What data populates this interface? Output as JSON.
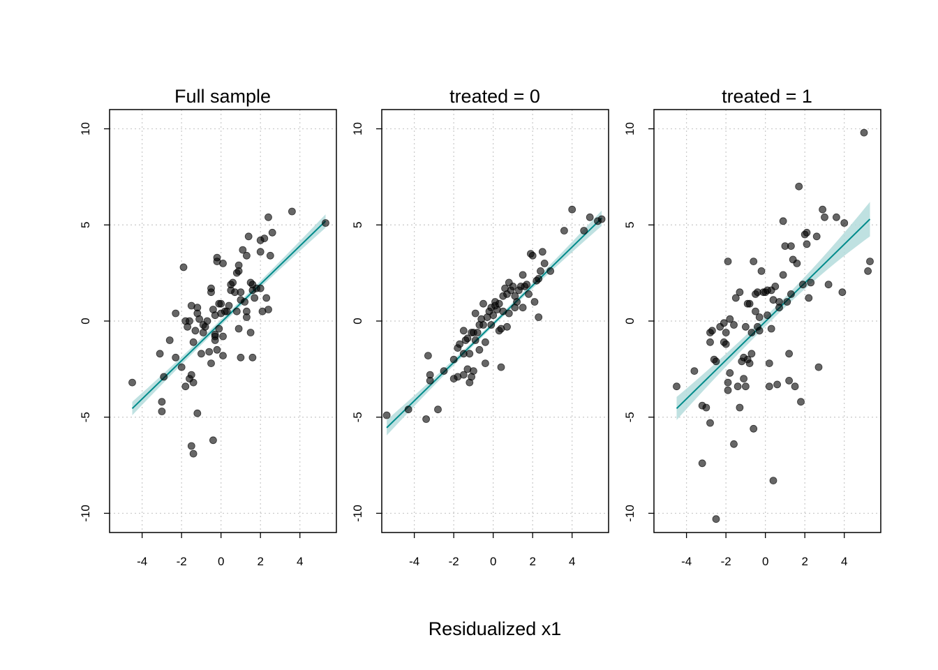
{
  "figure": {
    "xlabel": "Residualized x1",
    "colors": {
      "points": "#000000",
      "fit_line": "#008B8B",
      "band": "#B4DCDC",
      "grid": "#C8C8C8"
    }
  },
  "chart_data": [
    {
      "type": "scatter",
      "title": "Full sample",
      "xlim": [
        -5.65,
        5.85
      ],
      "ylim": [
        -11,
        11
      ],
      "xticks": [
        "-4",
        "-2",
        "0",
        "2",
        "4"
      ],
      "xtick_values": [
        -4,
        -2,
        0,
        2,
        4
      ],
      "yticks": [
        "-10",
        "-5",
        "0",
        "5",
        "10"
      ],
      "ytick_values": [
        -10,
        -5,
        0,
        5,
        10
      ],
      "grid": true,
      "fit": {
        "x1": -4.5,
        "y1": -4.55,
        "x2": 5.3,
        "y2": 5.2,
        "band_start": 0.35,
        "band_end": 0.35,
        "band_mid": 0.15
      },
      "points": [
        [
          -4.5,
          -3.2
        ],
        [
          -2.9,
          -2.9
        ],
        [
          -3.0,
          -4.2
        ],
        [
          -3.0,
          -4.7
        ],
        [
          -3.1,
          -1.7
        ],
        [
          -2.6,
          -1.0
        ],
        [
          -2.3,
          0.4
        ],
        [
          -2.0,
          -2.4
        ],
        [
          -1.8,
          -3.4
        ],
        [
          -1.6,
          -3.0
        ],
        [
          -1.4,
          -3.2
        ],
        [
          -1.5,
          -2.8
        ],
        [
          -1.2,
          -4.8
        ],
        [
          -1.5,
          -6.5
        ],
        [
          -1.4,
          -6.9
        ],
        [
          -0.4,
          -6.2
        ],
        [
          -1.9,
          2.8
        ],
        [
          -1.8,
          0.0
        ],
        [
          -1.7,
          -0.3
        ],
        [
          -1.6,
          0.0
        ],
        [
          -1.5,
          0.8
        ],
        [
          -1.3,
          -0.5
        ],
        [
          -1.2,
          0.4
        ],
        [
          -1.2,
          0.7
        ],
        [
          -1.1,
          0.1
        ],
        [
          -1.0,
          -1.7
        ],
        [
          -0.9,
          -0.6
        ],
        [
          -0.8,
          -0.3
        ],
        [
          -0.7,
          0.0
        ],
        [
          -0.6,
          -1.6
        ],
        [
          -0.5,
          1.5
        ],
        [
          -0.5,
          1.7
        ],
        [
          -0.4,
          0.6
        ],
        [
          -0.3,
          -0.7
        ],
        [
          -0.3,
          -1.0
        ],
        [
          -0.3,
          0.3
        ],
        [
          -0.2,
          3.3
        ],
        [
          -0.2,
          3.1
        ],
        [
          -0.1,
          0.9
        ],
        [
          -0.1,
          -0.4
        ],
        [
          0.0,
          0.4
        ],
        [
          0.0,
          0.9
        ],
        [
          0.1,
          3.0
        ],
        [
          0.2,
          0.5
        ],
        [
          0.3,
          0.5
        ],
        [
          0.4,
          0.8
        ],
        [
          0.5,
          1.6
        ],
        [
          0.5,
          1.9
        ],
        [
          0.6,
          2.0
        ],
        [
          0.7,
          1.5
        ],
        [
          0.8,
          0.5
        ],
        [
          0.8,
          2.5
        ],
        [
          0.9,
          2.9
        ],
        [
          0.9,
          2.6
        ],
        [
          1.0,
          1.1
        ],
        [
          1.0,
          1.5
        ],
        [
          1.1,
          3.7
        ],
        [
          1.2,
          1.0
        ],
        [
          1.3,
          0.5
        ],
        [
          1.3,
          0.2
        ],
        [
          1.3,
          3.4
        ],
        [
          1.4,
          4.4
        ],
        [
          1.5,
          2.0
        ],
        [
          1.6,
          1.9
        ],
        [
          1.6,
          1.6
        ],
        [
          1.7,
          1.2
        ],
        [
          1.8,
          1.7
        ],
        [
          2.0,
          1.7
        ],
        [
          2.0,
          4.2
        ],
        [
          2.0,
          3.6
        ],
        [
          2.1,
          0.5
        ],
        [
          2.2,
          4.3
        ],
        [
          2.3,
          1.2
        ],
        [
          2.4,
          0.6
        ],
        [
          2.5,
          3.4
        ],
        [
          2.6,
          4.6
        ],
        [
          2.4,
          5.4
        ],
        [
          3.6,
          5.7
        ],
        [
          5.3,
          5.1
        ],
        [
          -0.9,
          -0.2
        ],
        [
          -0.3,
          -0.8
        ],
        [
          0.1,
          -0.8
        ],
        [
          -0.5,
          -2.2
        ],
        [
          -0.2,
          -1.5
        ],
        [
          0.1,
          -1.8
        ],
        [
          -1.4,
          -1.1
        ],
        [
          1.0,
          -1.9
        ],
        [
          1.6,
          -1.9
        ],
        [
          1.5,
          -0.6
        ],
        [
          0.9,
          -0.4
        ],
        [
          -2.3,
          -1.9
        ]
      ]
    },
    {
      "type": "scatter",
      "title": "treated = 0",
      "xlim": [
        -5.65,
        5.85
      ],
      "ylim": [
        -11,
        11
      ],
      "xticks": [
        "-4",
        "-2",
        "0",
        "2",
        "4"
      ],
      "xtick_values": [
        -4,
        -2,
        0,
        2,
        4
      ],
      "yticks": [
        "-10",
        "-5",
        "0",
        "5",
        "10"
      ],
      "ytick_values": [
        -10,
        -5,
        0,
        5,
        10
      ],
      "grid": true,
      "fit": {
        "x1": -5.4,
        "y1": -5.55,
        "x2": 5.5,
        "y2": 5.35,
        "band_start": 0.4,
        "band_end": 0.4,
        "band_mid": 0.12
      },
      "points": [
        [
          -5.4,
          -4.9
        ],
        [
          -4.3,
          -4.6
        ],
        [
          -3.4,
          -5.1
        ],
        [
          -2.8,
          -4.6
        ],
        [
          -3.2,
          -3.1
        ],
        [
          -3.2,
          -2.8
        ],
        [
          -3.3,
          -1.8
        ],
        [
          -2.0,
          -3.0
        ],
        [
          -1.8,
          -2.9
        ],
        [
          -1.5,
          -2.8
        ],
        [
          -1.3,
          -2.5
        ],
        [
          -1.2,
          -3.2
        ],
        [
          -1.1,
          -2.9
        ],
        [
          -1.0,
          -2.6
        ],
        [
          -2.0,
          -2.0
        ],
        [
          -1.8,
          -1.4
        ],
        [
          -1.7,
          -1.2
        ],
        [
          -1.5,
          -1.7
        ],
        [
          -1.4,
          -1.0
        ],
        [
          -1.3,
          -0.9
        ],
        [
          -1.2,
          -1.7
        ],
        [
          -1.1,
          -0.6
        ],
        [
          -1.0,
          -0.6
        ],
        [
          -0.9,
          -1.0
        ],
        [
          -0.8,
          -0.6
        ],
        [
          -0.7,
          -0.2
        ],
        [
          -0.6,
          0.1
        ],
        [
          -0.5,
          -0.2
        ],
        [
          -0.4,
          -1.1
        ],
        [
          -0.3,
          0.2
        ],
        [
          -0.2,
          0.5
        ],
        [
          -0.1,
          0.7
        ],
        [
          0.0,
          0.3
        ],
        [
          0.1,
          0.8
        ],
        [
          0.1,
          1.0
        ],
        [
          0.2,
          0.6
        ],
        [
          0.3,
          -0.5
        ],
        [
          0.4,
          -0.4
        ],
        [
          0.5,
          1.3
        ],
        [
          0.6,
          1.7
        ],
        [
          0.7,
          1.4
        ],
        [
          0.8,
          2.0
        ],
        [
          0.9,
          1.6
        ],
        [
          1.0,
          1.8
        ],
        [
          1.1,
          1.3
        ],
        [
          1.2,
          1.0
        ],
        [
          1.3,
          1.6
        ],
        [
          1.4,
          1.8
        ],
        [
          1.5,
          2.4
        ],
        [
          1.6,
          1.8
        ],
        [
          1.7,
          1.9
        ],
        [
          1.8,
          1.4
        ],
        [
          1.9,
          3.5
        ],
        [
          2.0,
          3.4
        ],
        [
          2.1,
          1.0
        ],
        [
          2.2,
          2.1
        ],
        [
          2.3,
          2.2
        ],
        [
          2.4,
          2.6
        ],
        [
          2.5,
          3.6
        ],
        [
          2.6,
          3.0
        ],
        [
          2.9,
          2.6
        ],
        [
          3.6,
          4.7
        ],
        [
          4.0,
          5.8
        ],
        [
          4.6,
          4.7
        ],
        [
          4.9,
          5.4
        ],
        [
          5.5,
          5.3
        ],
        [
          5.3,
          5.2
        ],
        [
          -0.7,
          -1.5
        ],
        [
          -0.4,
          -2.2
        ],
        [
          0.4,
          -2.4
        ],
        [
          0.7,
          -0.3
        ],
        [
          1.5,
          0.7
        ],
        [
          2.3,
          0.2
        ],
        [
          0.8,
          0.4
        ],
        [
          -1.5,
          -0.5
        ],
        [
          -0.9,
          0.4
        ],
        [
          -0.1,
          -0.2
        ],
        [
          0.3,
          0.9
        ],
        [
          1.1,
          0.7
        ],
        [
          -2.5,
          -2.6
        ],
        [
          -0.5,
          0.9
        ],
        [
          0.5,
          0.5
        ]
      ]
    },
    {
      "type": "scatter",
      "title": "treated = 1",
      "xlim": [
        -5.65,
        5.85
      ],
      "ylim": [
        -11,
        11
      ],
      "xticks": [
        "-4",
        "-2",
        "0",
        "2",
        "4"
      ],
      "xtick_values": [
        -4,
        -2,
        0,
        2,
        4
      ],
      "yticks": [
        "-10",
        "-5",
        "0",
        "5",
        "10"
      ],
      "ytick_values": [
        -10,
        -5,
        0,
        5,
        10
      ],
      "grid": true,
      "fit": {
        "x1": -4.5,
        "y1": -4.55,
        "x2": 5.3,
        "y2": 5.3,
        "band_start": 0.6,
        "band_end": 0.9,
        "band_mid": 0.25
      },
      "points": [
        [
          -4.5,
          -3.4
        ],
        [
          -3.6,
          -2.6
        ],
        [
          -3.2,
          -4.4
        ],
        [
          -3.0,
          -4.5
        ],
        [
          -3.2,
          -7.4
        ],
        [
          -2.8,
          -5.3
        ],
        [
          -2.5,
          -10.3
        ],
        [
          -2.8,
          -0.6
        ],
        [
          -2.8,
          -1.1
        ],
        [
          -2.7,
          -0.5
        ],
        [
          -2.6,
          -2.0
        ],
        [
          -2.3,
          -0.3
        ],
        [
          -2.1,
          -0.1
        ],
        [
          -2.1,
          -1.1
        ],
        [
          -2.0,
          -1.2
        ],
        [
          -2.0,
          -0.6
        ],
        [
          -1.9,
          3.1
        ],
        [
          -1.9,
          -3.2
        ],
        [
          -1.9,
          -3.6
        ],
        [
          -1.8,
          -2.7
        ],
        [
          -1.8,
          0.1
        ],
        [
          -1.6,
          -0.2
        ],
        [
          -1.6,
          -6.4
        ],
        [
          -1.5,
          1.2
        ],
        [
          -1.4,
          -3.4
        ],
        [
          -1.3,
          -4.5
        ],
        [
          -1.2,
          -2.1
        ],
        [
          -1.1,
          -1.9
        ],
        [
          -1.1,
          -3.0
        ],
        [
          -1.0,
          -3.4
        ],
        [
          -1.0,
          -0.3
        ],
        [
          -0.9,
          0.9
        ],
        [
          -0.8,
          0.9
        ],
        [
          -0.7,
          -0.6
        ],
        [
          -0.7,
          -1.7
        ],
        [
          -0.6,
          3.1
        ],
        [
          -0.6,
          -5.6
        ],
        [
          -0.5,
          1.4
        ],
        [
          -0.5,
          0.5
        ],
        [
          -0.4,
          -0.3
        ],
        [
          -0.4,
          1.5
        ],
        [
          -0.3,
          -0.5
        ],
        [
          -0.2,
          2.6
        ],
        [
          -0.1,
          1.5
        ],
        [
          0.0,
          1.5
        ],
        [
          0.1,
          1.6
        ],
        [
          0.2,
          -2.2
        ],
        [
          0.2,
          -3.4
        ],
        [
          0.3,
          1.6
        ],
        [
          0.3,
          -0.4
        ],
        [
          0.4,
          1.1
        ],
        [
          0.4,
          -8.3
        ],
        [
          0.5,
          1.8
        ],
        [
          0.6,
          -3.3
        ],
        [
          0.7,
          0.7
        ],
        [
          0.7,
          1.0
        ],
        [
          0.9,
          5.2
        ],
        [
          0.9,
          2.4
        ],
        [
          1.0,
          3.9
        ],
        [
          1.1,
          1.0
        ],
        [
          1.2,
          -1.7
        ],
        [
          1.2,
          -3.1
        ],
        [
          1.3,
          3.9
        ],
        [
          1.3,
          1.4
        ],
        [
          1.4,
          3.2
        ],
        [
          1.5,
          -3.4
        ],
        [
          1.6,
          3.0
        ],
        [
          1.7,
          7.0
        ],
        [
          1.8,
          -4.2
        ],
        [
          1.9,
          1.9
        ],
        [
          2.0,
          4.5
        ],
        [
          2.1,
          4.6
        ],
        [
          2.1,
          4.0
        ],
        [
          2.2,
          1.2
        ],
        [
          2.3,
          2.0
        ],
        [
          2.6,
          4.4
        ],
        [
          2.7,
          -2.4
        ],
        [
          2.9,
          5.8
        ],
        [
          3.0,
          5.4
        ],
        [
          3.2,
          1.9
        ],
        [
          3.6,
          5.4
        ],
        [
          3.9,
          1.5
        ],
        [
          4.0,
          5.1
        ],
        [
          5.0,
          9.8
        ],
        [
          5.2,
          2.6
        ],
        [
          5.3,
          3.1
        ],
        [
          -0.9,
          -2.0
        ],
        [
          -0.3,
          0.2
        ],
        [
          0.1,
          0.3
        ],
        [
          -2.5,
          -2.1
        ],
        [
          -0.8,
          -2.2
        ],
        [
          -1.3,
          1.5
        ]
      ]
    }
  ]
}
